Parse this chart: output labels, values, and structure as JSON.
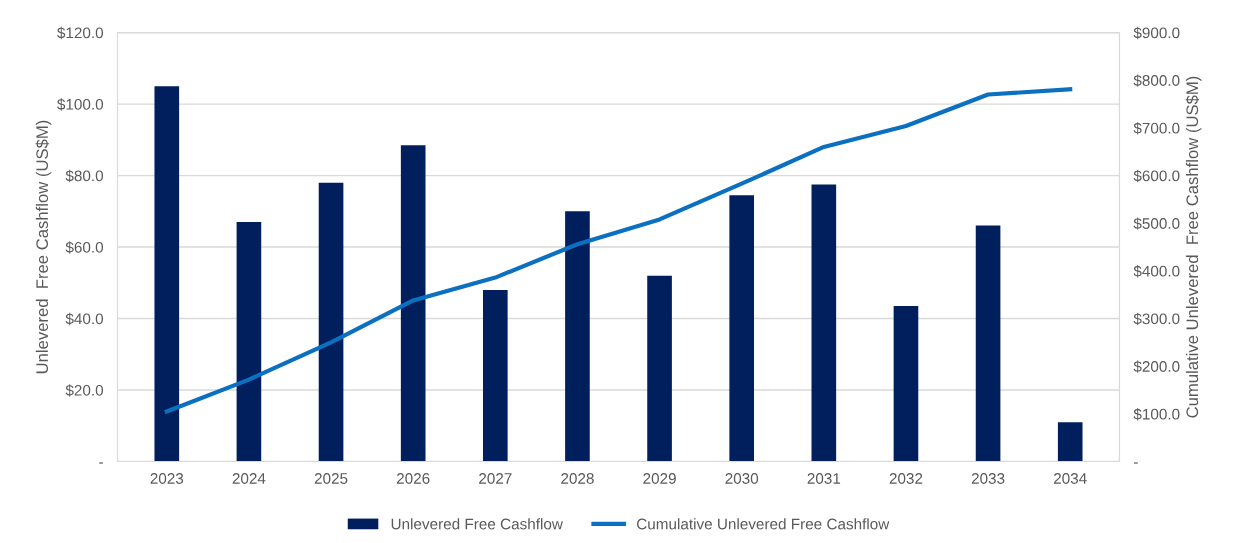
{
  "chart_data": {
    "type": "bar",
    "categories": [
      "2023",
      "2024",
      "2025",
      "2026",
      "2027",
      "2028",
      "2029",
      "2030",
      "2031",
      "2032",
      "2033",
      "2034"
    ],
    "series": [
      {
        "name": "Unlevered Free Cashflow",
        "color": "#001f5c",
        "values": [
          105,
          67,
          78,
          88.5,
          48,
          70,
          52,
          74.5,
          77.5,
          43.5,
          66,
          11
        ]
      },
      {
        "name": "Cumulative Unlevered Free Cashflow",
        "type": "line",
        "axis": "y2",
        "color": "#0b70c0",
        "values": [
          105,
          172,
          250,
          338,
          386,
          456,
          508,
          583,
          660,
          704,
          770,
          781
        ]
      }
    ],
    "ylabel": "Unlevered  Free Cashflow (US$M)",
    "y2label": "Cumulative Unlevered  Free Cashflow (US$M)",
    "ylim": [
      0,
      120
    ],
    "yticks": [
      {
        "value": 0,
        "label": "-"
      },
      {
        "value": 20,
        "label": "$20.0"
      },
      {
        "value": 40,
        "label": "$40.0"
      },
      {
        "value": 60,
        "label": "$60.0"
      },
      {
        "value": 80,
        "label": "$80.0"
      },
      {
        "value": 100,
        "label": "$100.0"
      },
      {
        "value": 120,
        "label": "$120.0"
      }
    ],
    "y2lim": [
      0,
      900
    ],
    "y2ticks": [
      {
        "value": 0,
        "label": "-"
      },
      {
        "value": 100,
        "label": "$100.0"
      },
      {
        "value": 200,
        "label": "$200.0"
      },
      {
        "value": 300,
        "label": "$300.0"
      },
      {
        "value": 400,
        "label": "$400.0"
      },
      {
        "value": 500,
        "label": "$500.0"
      },
      {
        "value": 600,
        "label": "$600.0"
      },
      {
        "value": 700,
        "label": "$700.0"
      },
      {
        "value": 800,
        "label": "$800.0"
      },
      {
        "value": 900,
        "label": "$900.0"
      }
    ],
    "grid": "y",
    "legend": "bottom",
    "marker": "none",
    "line_style": "solid"
  }
}
